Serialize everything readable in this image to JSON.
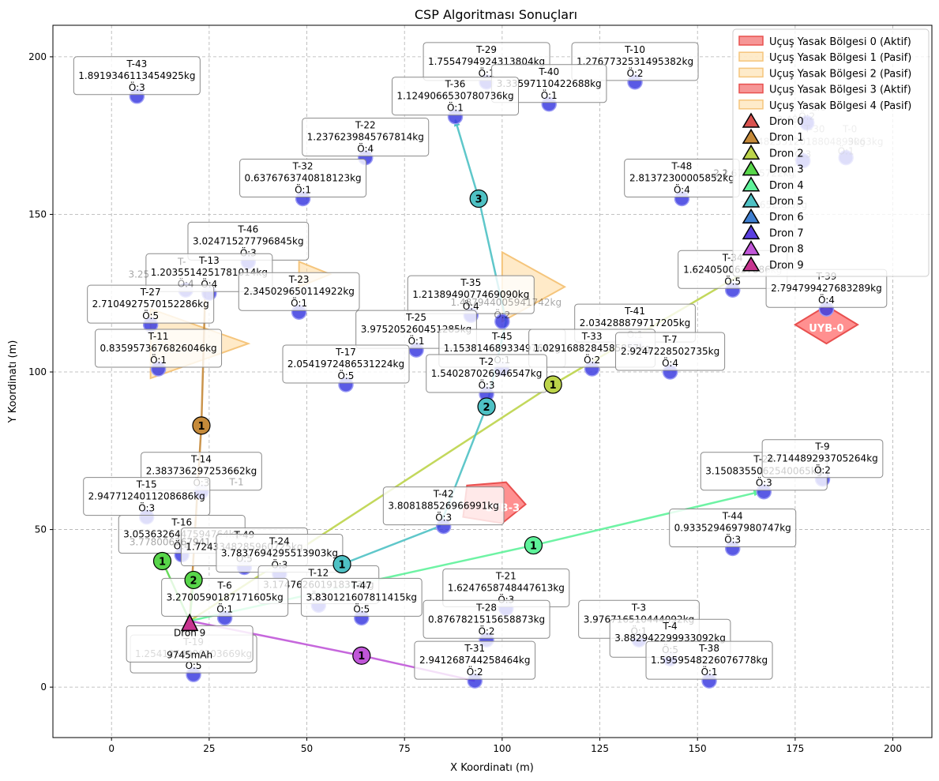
{
  "chart_data": {
    "type": "scatter",
    "title": "CSP Algoritması Sonuçları",
    "xlabel": "X Koordinatı (m)",
    "ylabel": "Y Koordinatı (m)",
    "xlim": [
      -15,
      210
    ],
    "ylim": [
      -16,
      210
    ],
    "xticks": [
      0,
      25,
      50,
      75,
      100,
      125,
      150,
      175,
      200
    ],
    "yticks": [
      0,
      50,
      100,
      150,
      200
    ],
    "grid": true,
    "legend_position": "top-right",
    "no_fly_zones": [
      {
        "label": "UYB-0",
        "active": true,
        "points": [
          [
            175,
            115
          ],
          [
            183,
            109
          ],
          [
            191,
            115
          ],
          [
            183,
            121
          ]
        ],
        "label_at": [
          183,
          114
        ]
      },
      {
        "label": "UYB-3",
        "active": true,
        "points": [
          [
            91,
            64
          ],
          [
            101,
            65
          ],
          [
            106,
            58
          ],
          [
            100,
            52
          ],
          [
            90,
            54
          ]
        ],
        "label_at": [
          100,
          57
        ]
      },
      {
        "label": "",
        "active": false,
        "points": [
          [
            100,
            138
          ],
          [
            116,
            127
          ],
          [
            100,
            116
          ]
        ],
        "label_at": null
      },
      {
        "label": "",
        "active": false,
        "points": [
          [
            10,
            120
          ],
          [
            35,
            109
          ],
          [
            10,
            98
          ]
        ],
        "label_at": null
      },
      {
        "label": "",
        "active": false,
        "points": [
          [
            48,
            135
          ],
          [
            56,
            131
          ],
          [
            48,
            127
          ]
        ],
        "label_at": null
      }
    ],
    "deliveries": [
      {
        "id": "T-43",
        "weight": "1.8919346113454925kg",
        "priority": "Ö:3",
        "x": 6.5,
        "y": 187.5
      },
      {
        "id": "T-29",
        "weight": "1.7554794924313804kg",
        "priority": "Ö:1",
        "x": 96,
        "y": 192
      },
      {
        "id": "T-10",
        "weight": "1.2767732531495382kg",
        "priority": "Ö:2",
        "x": 134,
        "y": 192
      },
      {
        "id": "T-40",
        "weight": "3.33597110422688kg",
        "priority": "Ö:1",
        "x": 112,
        "y": 185
      },
      {
        "id": "T-36",
        "weight": "1.1249066530780736kg",
        "priority": "Ö:1",
        "x": 88,
        "y": 181
      },
      {
        "id": "T-22",
        "weight": "1.2376239845767814kg",
        "priority": "Ö:4",
        "x": 65,
        "y": 168
      },
      {
        "id": "T-32",
        "weight": "0.6376763740818123kg",
        "priority": "Ö:1",
        "x": 49,
        "y": 155
      },
      {
        "id": "T-48",
        "weight": "2.81372300005852kg",
        "priority": "Ö:4",
        "x": 146,
        "y": 155
      },
      {
        "id": "T-46",
        "weight": "3.024715277796845kg",
        "priority": "Ö:3",
        "x": 35,
        "y": 135
      },
      {
        "id": "T-13",
        "weight": "1.2035514251781014kg",
        "priority": "Ö:4",
        "x": 25,
        "y": 125
      },
      {
        "id": "T-23",
        "weight": "2.345029650114922kg",
        "priority": "Ö:1",
        "x": 48,
        "y": 119
      },
      {
        "id": "T-27",
        "weight": "2.7104927570152286kg",
        "priority": "Ö:5",
        "x": 10,
        "y": 115
      },
      {
        "id": "T-35",
        "weight": "1.2138949077469090kg",
        "priority": "Ö:4",
        "x": 92,
        "y": 118
      },
      {
        "id": "T-34",
        "weight": "1.6240500637886kg",
        "priority": "Ö:5",
        "x": 159,
        "y": 126
      },
      {
        "id": "T-39",
        "weight": "2.794799427683289kg",
        "priority": "Ö:4",
        "x": 183,
        "y": 120
      },
      {
        "id": "T-25",
        "weight": "3.975205260451285kg",
        "priority": "Ö:1",
        "x": 78,
        "y": 107
      },
      {
        "id": "T-41",
        "weight": "2.034288879717205kg",
        "priority": "Ö:1",
        "x": 134,
        "y": 109
      },
      {
        "id": "T-45",
        "weight": "1.1538146893349766kg",
        "priority": "Ö:1",
        "x": 100,
        "y": 101
      },
      {
        "id": "T-33",
        "weight": "1.0291688284585857kg",
        "priority": "Ö:2",
        "x": 123,
        "y": 101
      },
      {
        "id": "T-7",
        "weight": "2.9247228502735kg",
        "priority": "Ö:4",
        "x": 143,
        "y": 100
      },
      {
        "id": "T-11",
        "weight": "0.8359573676826046kg",
        "priority": "Ö:1",
        "x": 12,
        "y": 101
      },
      {
        "id": "T-17",
        "weight": "2.0541972486531224kg",
        "priority": "Ö:5",
        "x": 60,
        "y": 96
      },
      {
        "id": "T-2",
        "weight": "1.540287026946547kg",
        "priority": "Ö:3",
        "x": 96,
        "y": 93
      },
      {
        "id": "T-14",
        "weight": "2.383736297253662kg",
        "priority": "Ö:3",
        "x": 23,
        "y": 62
      },
      {
        "id": "T-15",
        "weight": "2.9477124011208686kg",
        "priority": "Ö:3",
        "x": 9,
        "y": 54
      },
      {
        "id": "T-26",
        "weight": "3.1508355062540065kg",
        "priority": "Ö:3",
        "x": 167,
        "y": 62
      },
      {
        "id": "T-9",
        "weight": "2.714489293705264kg",
        "priority": "Ö:2",
        "x": 182,
        "y": 66
      },
      {
        "id": "T-42",
        "weight": "3.808188526966991kg",
        "priority": "Ö:3",
        "x": 85,
        "y": 51
      },
      {
        "id": "T-44",
        "weight": "0.9335294697980747kg",
        "priority": "Ö:3",
        "x": 159,
        "y": 44
      },
      {
        "id": "T-16",
        "weight": "3.0536326447594764kg",
        "priority": "Ö:4",
        "x": 18,
        "y": 42
      },
      {
        "id": "T-49",
        "weight": "1.7243348285960725kg",
        "priority": "Ö:5",
        "x": 34,
        "y": 38
      },
      {
        "id": "T-24",
        "weight": "3.7837694295513903kg",
        "priority": "Ö:3",
        "x": 43,
        "y": 36
      },
      {
        "id": "T-12",
        "weight": "3.174762601918373kg",
        "priority": "Ö:3",
        "x": 53,
        "y": 26
      },
      {
        "id": "T-6",
        "weight": "3.2700590187171605kg",
        "priority": "Ö:1",
        "x": 29,
        "y": 22
      },
      {
        "id": "T-47",
        "weight": "3.830121607811415kg",
        "priority": "Ö:5",
        "x": 64,
        "y": 22
      },
      {
        "id": "T-21",
        "weight": "1.6247658748447613kg",
        "priority": "Ö:3",
        "x": 101,
        "y": 25
      },
      {
        "id": "T-28",
        "weight": "0.8767821515658873kg",
        "priority": "Ö:2",
        "x": 96,
        "y": 15
      },
      {
        "id": "T-3",
        "weight": "3.976716510444092kg",
        "priority": "Ö:1",
        "x": 135,
        "y": 15
      },
      {
        "id": "T-4",
        "weight": "3.882942299933092kg",
        "priority": "Ö:5",
        "x": 143,
        "y": 9
      },
      {
        "id": "T-38",
        "weight": "1.5959548226076778kg",
        "priority": "Ö:1",
        "x": 153,
        "y": 2
      },
      {
        "id": "T-31",
        "weight": "2.941268744258464kg",
        "priority": "Ö:2",
        "x": 93,
        "y": 2
      },
      {
        "id": "T-19",
        "weight": "1.2541264906203669kg",
        "priority": "Ö:5",
        "x": 21,
        "y": 4
      },
      {
        "id": "",
        "weight": "",
        "priority": "Ö:2",
        "x": 178,
        "y": 179
      },
      {
        "id": "",
        "weight": "",
        "priority": "Ö:3",
        "x": 177,
        "y": 167
      },
      {
        "id": "",
        "weight": "",
        "priority": "Ö:1",
        "x": 188,
        "y": 168
      },
      {
        "id": "",
        "weight": "",
        "priority": "Ö:2",
        "x": 100,
        "y": 116
      },
      {
        "id": "",
        "weight": "",
        "priority": "Ö:4",
        "x": 19,
        "y": 126
      }
    ],
    "ghost_labels": [
      {
        "text": "1.8",
        "x": 181,
        "y": 183
      },
      {
        "text": "2.48",
        "x": 173,
        "y": 179
      },
      {
        "text": "T-30",
        "x": 180,
        "y": 176
      },
      {
        "text": "2.4825312018804899kg",
        "x": 178,
        "y": 172
      },
      {
        "text": "T-0",
        "x": 189,
        "y": 176
      },
      {
        "text": "3063kg",
        "x": 193,
        "y": 172
      },
      {
        "text": "2.1",
        "x": 156,
        "y": 162
      },
      {
        "text": "2.67",
        "x": 159,
        "y": 162
      },
      {
        "text": "6935722kg",
        "x": 168,
        "y": 162
      },
      {
        "text": "2.",
        "x": 162,
        "y": 152
      },
      {
        "text": "652385kg",
        "x": 172,
        "y": 152
      },
      {
        "text": "3.25",
        "x": 7,
        "y": 130
      },
      {
        "text": "T-",
        "x": 18,
        "y": 134
      },
      {
        "text": "3.778006367941",
        "x": 15,
        "y": 45
      },
      {
        "text": "T-1",
        "x": 32,
        "y": 64
      },
      {
        "text": "1.487944005941742kg",
        "x": 101,
        "y": 121
      }
    ],
    "drone_paths": [
      {
        "name": "Dron 1",
        "color": "#c58a3a",
        "path": [
          [
            20,
            21
          ],
          [
            23,
            83
          ],
          [
            24,
            126
          ]
        ],
        "arrow_end": false,
        "markers": [
          {
            "x": 23,
            "y": 83,
            "label": "1"
          }
        ]
      },
      {
        "name": "Dron 2",
        "color": "#bcd44a",
        "path": [
          [
            20,
            21
          ],
          [
            113,
            96
          ],
          [
            164,
            133
          ]
        ],
        "arrow_end": false,
        "markers": [
          {
            "x": 113,
            "y": 96,
            "label": "1"
          }
        ]
      },
      {
        "name": "Dron 3",
        "color": "#58d64a",
        "path": [
          [
            20,
            21
          ],
          [
            13,
            40
          ],
          [
            20,
            21
          ],
          [
            21,
            34
          ]
        ],
        "arrow_end": false,
        "markers": [
          {
            "x": 13,
            "y": 40,
            "label": "1"
          },
          {
            "x": 21,
            "y": 34,
            "label": "2"
          }
        ]
      },
      {
        "name": "Dron 4",
        "color": "#5ef29a",
        "path": [
          [
            20,
            21
          ],
          [
            108,
            45
          ],
          [
            166,
            62
          ]
        ],
        "arrow_end": true,
        "markers": [
          {
            "x": 108,
            "y": 45,
            "label": "1"
          }
        ]
      },
      {
        "name": "Dron 5",
        "color": "#4ec1c4",
        "path": [
          [
            59,
            39
          ],
          [
            84,
            51
          ],
          [
            96,
            89
          ],
          [
            101,
            116
          ],
          [
            94,
            155
          ],
          [
            88,
            180
          ]
        ],
        "arrow_end": true,
        "markers": [
          {
            "x": 59,
            "y": 39,
            "label": "1"
          },
          {
            "x": 96,
            "y": 89,
            "label": "2"
          },
          {
            "x": 94,
            "y": 155,
            "label": "3"
          }
        ]
      },
      {
        "name": "Dron 8",
        "color": "#c056d8",
        "path": [
          [
            20,
            21
          ],
          [
            64,
            10
          ],
          [
            93,
            2
          ]
        ],
        "arrow_end": false,
        "markers": [
          {
            "x": 64,
            "y": 10,
            "label": "1"
          }
        ]
      },
      {
        "name": "Dron 9",
        "color": "#c7358f",
        "path": [],
        "arrow_end": false,
        "markers": []
      }
    ],
    "drone_start": {
      "x": 20,
      "y": 20,
      "name": "Dron 9",
      "info": "Dron 9",
      "battery": "9745mAh"
    },
    "legend": [
      {
        "label": "Uçuş Yasak Bölgesi 0 (Aktif)",
        "kind": "zone",
        "color": "#f47c7c"
      },
      {
        "label": "Uçuş Yasak Bölgesi 1 (Pasif)",
        "kind": "zone",
        "color": "#fde2b3"
      },
      {
        "label": "Uçuş Yasak Bölgesi 2 (Pasif)",
        "kind": "zone",
        "color": "#fde2b3"
      },
      {
        "label": "Uçuş Yasak Bölgesi 3 (Aktif)",
        "kind": "zone",
        "color": "#f47c7c"
      },
      {
        "label": "Uçuş Yasak Bölgesi 4 (Pasif)",
        "kind": "zone",
        "color": "#fde2b3"
      },
      {
        "label": "Dron 0",
        "kind": "drone",
        "color": "#d9534f"
      },
      {
        "label": "Dron 1",
        "kind": "drone",
        "color": "#c58a3a"
      },
      {
        "label": "Dron 2",
        "kind": "drone",
        "color": "#bcd44a"
      },
      {
        "label": "Dron 3",
        "kind": "drone",
        "color": "#58d64a"
      },
      {
        "label": "Dron 4",
        "kind": "drone",
        "color": "#5ef29a"
      },
      {
        "label": "Dron 5",
        "kind": "drone",
        "color": "#4ec1c4"
      },
      {
        "label": "Dron 6",
        "kind": "drone",
        "color": "#3f7fd0"
      },
      {
        "label": "Dron 7",
        "kind": "drone",
        "color": "#5a3fe0"
      },
      {
        "label": "Dron 8",
        "kind": "drone",
        "color": "#c056d8"
      },
      {
        "label": "Dron 9",
        "kind": "drone",
        "color": "#c7358f"
      }
    ]
  },
  "colors": {
    "delivery_point": "#3d3de0",
    "zone_active": "#ff6b6b",
    "zone_passive": "#ffd89a"
  }
}
